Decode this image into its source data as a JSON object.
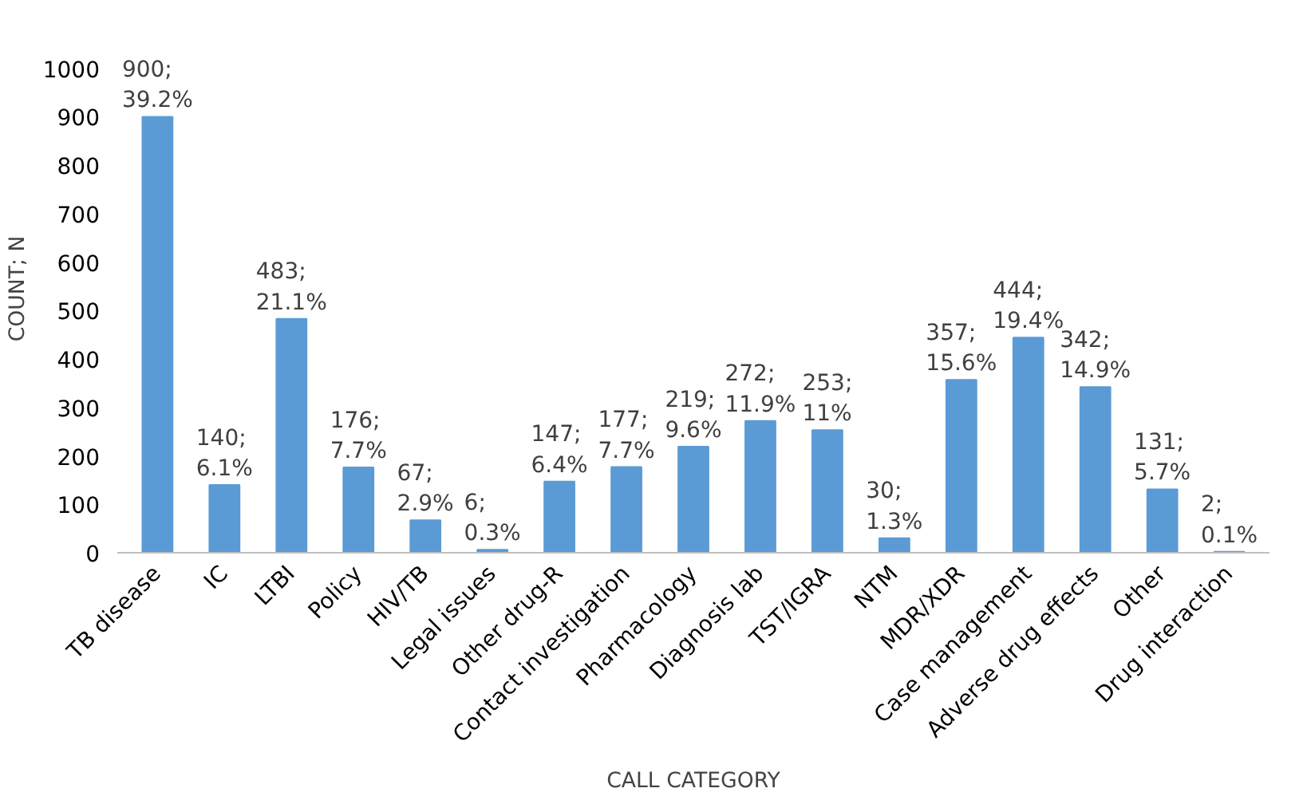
{
  "chart_data": {
    "type": "bar",
    "xlabel": "CALL CATEGORY",
    "ylabel": "COUNT; N",
    "categories": [
      "TB disease",
      "IC",
      "LTBI",
      "Policy",
      "HIV/TB",
      "Legal issues",
      "Other drug-R",
      "Contact investigation",
      "Pharmacology",
      "Diagnosis lab",
      "TST/IGRA",
      "NTM",
      "MDR/XDR",
      "Case management",
      "Adverse drug effects",
      "Other",
      "Drug interaction"
    ],
    "values": [
      900,
      140,
      483,
      176,
      67,
      6,
      147,
      177,
      219,
      272,
      253,
      30,
      357,
      444,
      342,
      131,
      2
    ],
    "value_labels": [
      "900;\n39.2%",
      "140;\n6.1%",
      "483;\n21.1%",
      "176;\n7.7%",
      "67;\n2.9%",
      "6;\n0.3%",
      "147;\n6.4%",
      "177;\n7.7%",
      "219;\n9.6%",
      "272;\n11.9%",
      "253;\n11%",
      "30;\n1.3%",
      "357;\n15.6%",
      "444;\n19.4%",
      "342;\n14.9%",
      "131;\n5.7%",
      "2;\n0.1%"
    ],
    "color": "#5b9bd5",
    "ylim": [
      0,
      1000
    ],
    "yticks": [
      0,
      100,
      200,
      300,
      400,
      500,
      600,
      700,
      800,
      900,
      1000
    ],
    "grid": false
  }
}
